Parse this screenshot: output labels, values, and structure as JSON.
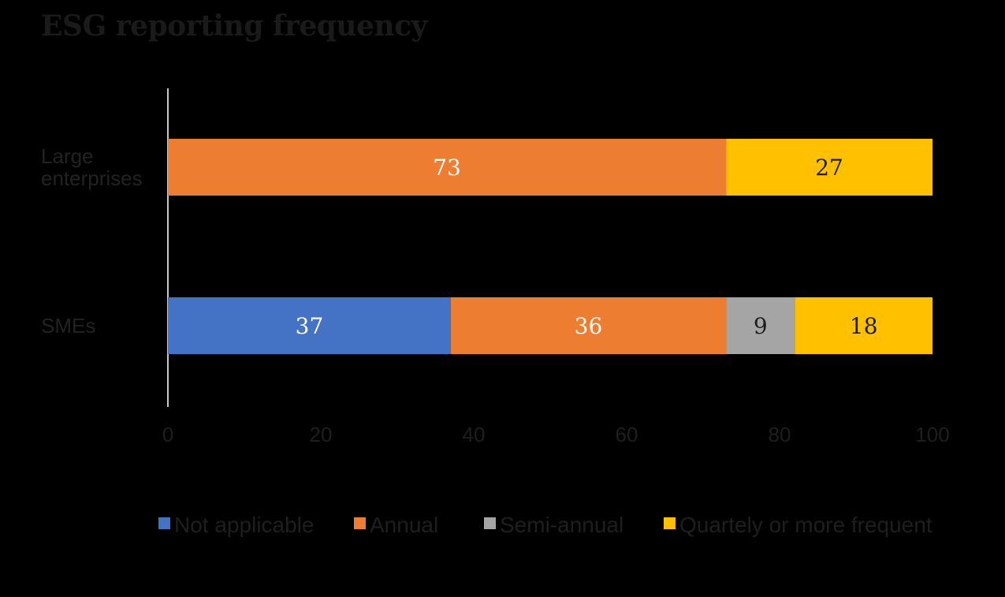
{
  "chart_data": {
    "type": "bar",
    "orientation": "horizontal",
    "stacked": true,
    "title": "ESG reporting frequency",
    "categories": [
      {
        "lines": [
          "Large",
          "enterprises"
        ]
      },
      {
        "lines": [
          "SMEs"
        ]
      }
    ],
    "series": [
      {
        "name": "Not applicable",
        "color": "#4472C4",
        "values": [
          0,
          37
        ]
      },
      {
        "name": "Annual",
        "color": "#ED7D31",
        "values": [
          73,
          36
        ]
      },
      {
        "name": "Semi-annual",
        "color": "#A5A5A5",
        "values": [
          0,
          9
        ]
      },
      {
        "name": "Quartely or more frequent",
        "color": "#FFC000",
        "values": [
          27,
          18
        ]
      }
    ],
    "xlim": [
      0,
      100
    ],
    "xticks": [
      0,
      20,
      40,
      60,
      80,
      100
    ],
    "grid": false,
    "legend": "bottom",
    "label_colors": {
      "dark_fill": "#FFFFFF",
      "light_fill": "#1e1e1e"
    }
  }
}
